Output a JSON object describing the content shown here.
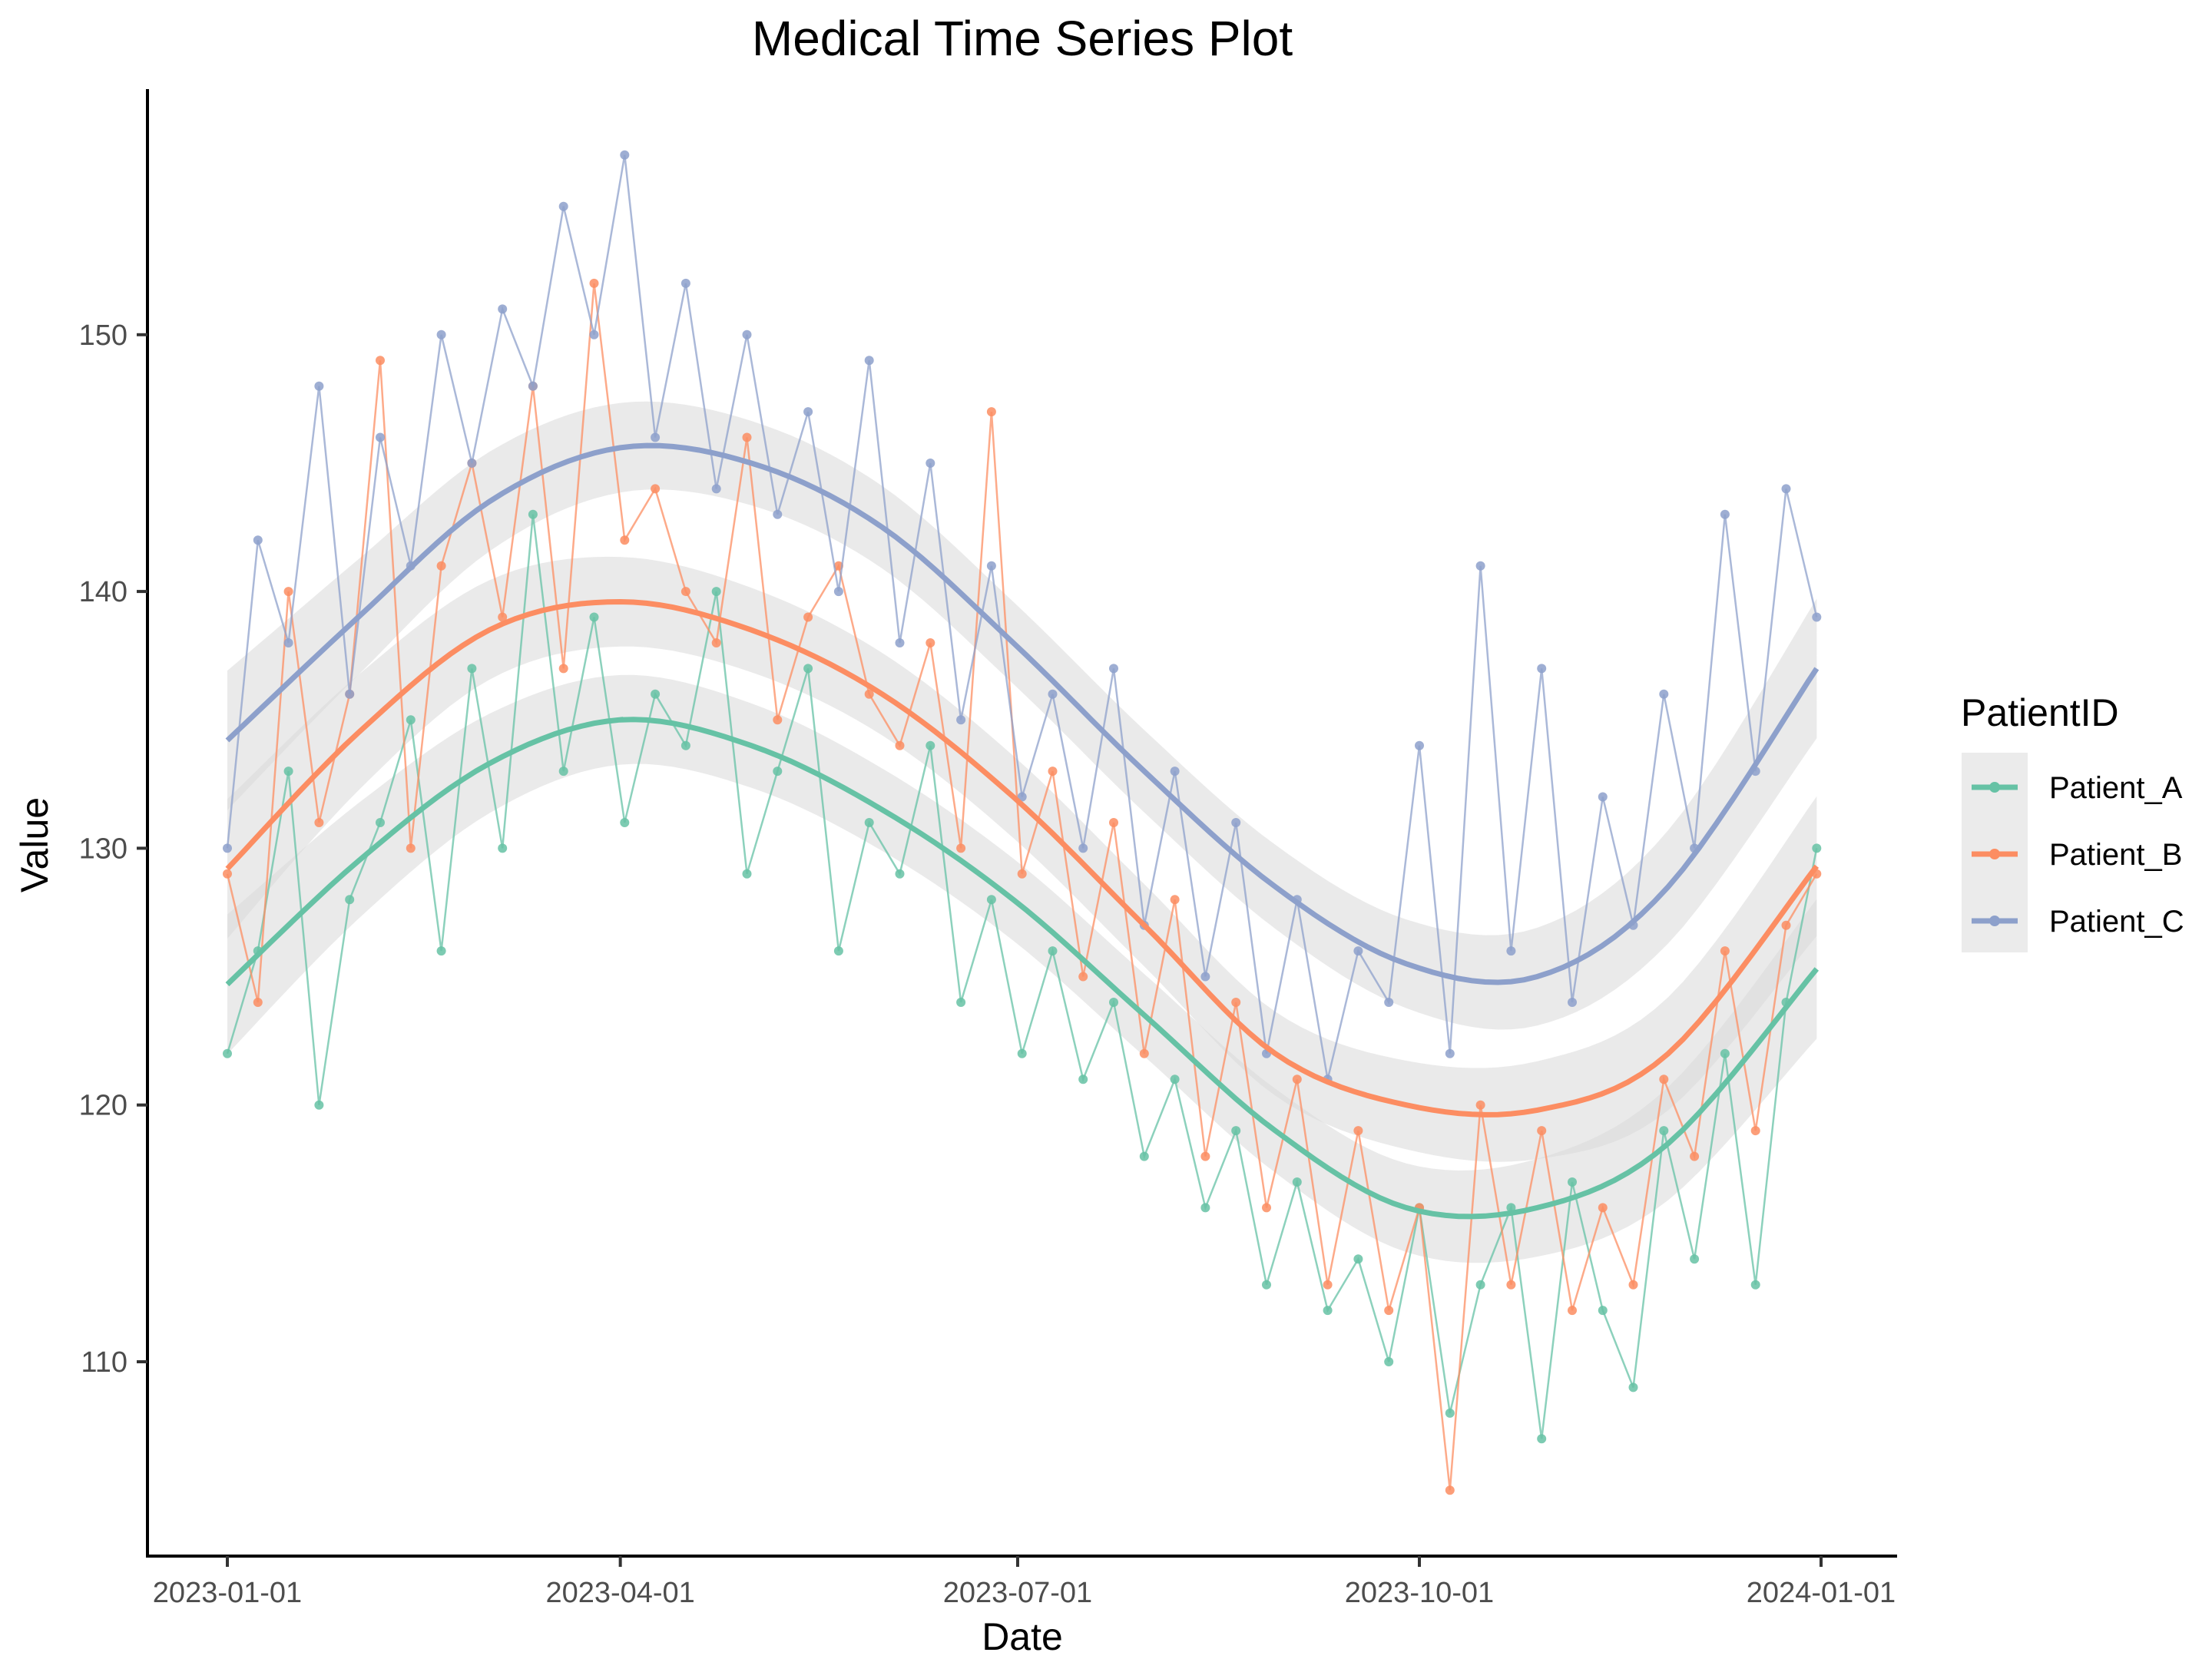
{
  "chart_data": {
    "type": "line",
    "title": "Medical Time Series Plot",
    "xlabel": "Date",
    "ylabel": "Value",
    "x_start_date": "2023-01-01",
    "x_day_offsets": [
      0,
      7,
      14,
      21,
      28,
      35,
      42,
      49,
      56,
      63,
      70,
      77,
      84,
      91,
      98,
      105,
      112,
      119,
      126,
      133,
      140,
      147,
      154,
      161,
      168,
      175,
      182,
      189,
      196,
      203,
      210,
      217,
      224,
      231,
      238,
      245,
      252,
      259,
      266,
      273,
      280,
      287,
      294,
      301,
      308,
      315,
      322,
      329,
      336,
      343,
      350,
      357,
      364
    ],
    "xlim_days": [
      -18,
      383
    ],
    "ylim": [
      102.4,
      159.6
    ],
    "x_ticks": [
      {
        "day": 0,
        "label": "2023-01-01"
      },
      {
        "day": 90,
        "label": "2023-04-01"
      },
      {
        "day": 181,
        "label": "2023-07-01"
      },
      {
        "day": 273,
        "label": "2023-10-01"
      },
      {
        "day": 365,
        "label": "2024-01-01"
      }
    ],
    "y_ticks": [
      {
        "value": 110,
        "label": "110"
      },
      {
        "value": 120,
        "label": "120"
      },
      {
        "value": 130,
        "label": "130"
      },
      {
        "value": 140,
        "label": "140"
      },
      {
        "value": 150,
        "label": "150"
      }
    ],
    "grid": false,
    "legend": {
      "title": "PatientID",
      "placement": "right"
    },
    "smooth_days": [
      0,
      30,
      60,
      90,
      120,
      150,
      180,
      210,
      240,
      270,
      300,
      330,
      364
    ],
    "ribbon_halfwidth": 1.6,
    "series": [
      {
        "name": "Patient_A",
        "color": "#66c2a5",
        "values": [
          122,
          126,
          133,
          120,
          128,
          131,
          135,
          126,
          137,
          130,
          143,
          133,
          139,
          131,
          136,
          134,
          140,
          129,
          133,
          137,
          126,
          131,
          129,
          134,
          124,
          128,
          122,
          126,
          121,
          124,
          118,
          121,
          116,
          119,
          113,
          117,
          112,
          114,
          110,
          116,
          108,
          113,
          116,
          107,
          117,
          112,
          109,
          119,
          114,
          122,
          113,
          124,
          130
        ],
        "smooth": [
          124.7,
          129.5,
          133.3,
          135.0,
          134.0,
          131.5,
          128.0,
          123.5,
          119.0,
          116.0,
          116.0,
          118.5,
          125.3
        ]
      },
      {
        "name": "Patient_B",
        "color": "#fc8d62",
        "values": [
          129,
          124,
          140,
          131,
          136,
          149,
          130,
          141,
          145,
          139,
          148,
          137,
          152,
          142,
          144,
          140,
          138,
          146,
          135,
          139,
          141,
          136,
          134,
          138,
          130,
          147,
          129,
          133,
          125,
          131,
          122,
          128,
          118,
          124,
          116,
          121,
          113,
          119,
          112,
          116,
          105,
          120,
          113,
          119,
          112,
          116,
          113,
          121,
          118,
          126,
          119,
          127,
          129
        ],
        "smooth": [
          129.2,
          134.5,
          138.5,
          139.6,
          138.5,
          136.0,
          132.0,
          127.0,
          122.0,
          120.0,
          119.8,
          122.0,
          129.3
        ]
      },
      {
        "name": "Patient_C",
        "color": "#8da0cb",
        "values": [
          130,
          142,
          138,
          148,
          136,
          146,
          141,
          150,
          145,
          151,
          148,
          155,
          150,
          157,
          146,
          152,
          144,
          150,
          143,
          147,
          140,
          149,
          138,
          145,
          135,
          141,
          132,
          136,
          130,
          137,
          127,
          133,
          125,
          131,
          122,
          128,
          121,
          126,
          124,
          134,
          122,
          141,
          126,
          137,
          124,
          132,
          127,
          136,
          130,
          143,
          133,
          144,
          139
        ],
        "smooth": [
          134.2,
          139.0,
          143.5,
          145.6,
          145.0,
          142.5,
          138.0,
          133.0,
          128.5,
          125.5,
          125.0,
          128.5,
          137.0
        ]
      }
    ]
  }
}
